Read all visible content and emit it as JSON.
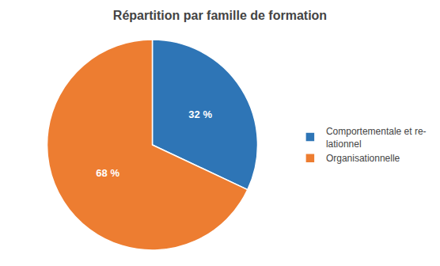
{
  "chart_data": {
    "type": "pie",
    "title": "Répartition par famille de formation",
    "categories": [
      "Comportementale et re-\nlationnel",
      "Organisationnelle"
    ],
    "values": [
      32,
      68
    ],
    "value_labels": [
      "32 %",
      "68 %"
    ],
    "colors": [
      "#2E75B6",
      "#ED7D31"
    ],
    "data_labels": true,
    "legend": "right"
  }
}
